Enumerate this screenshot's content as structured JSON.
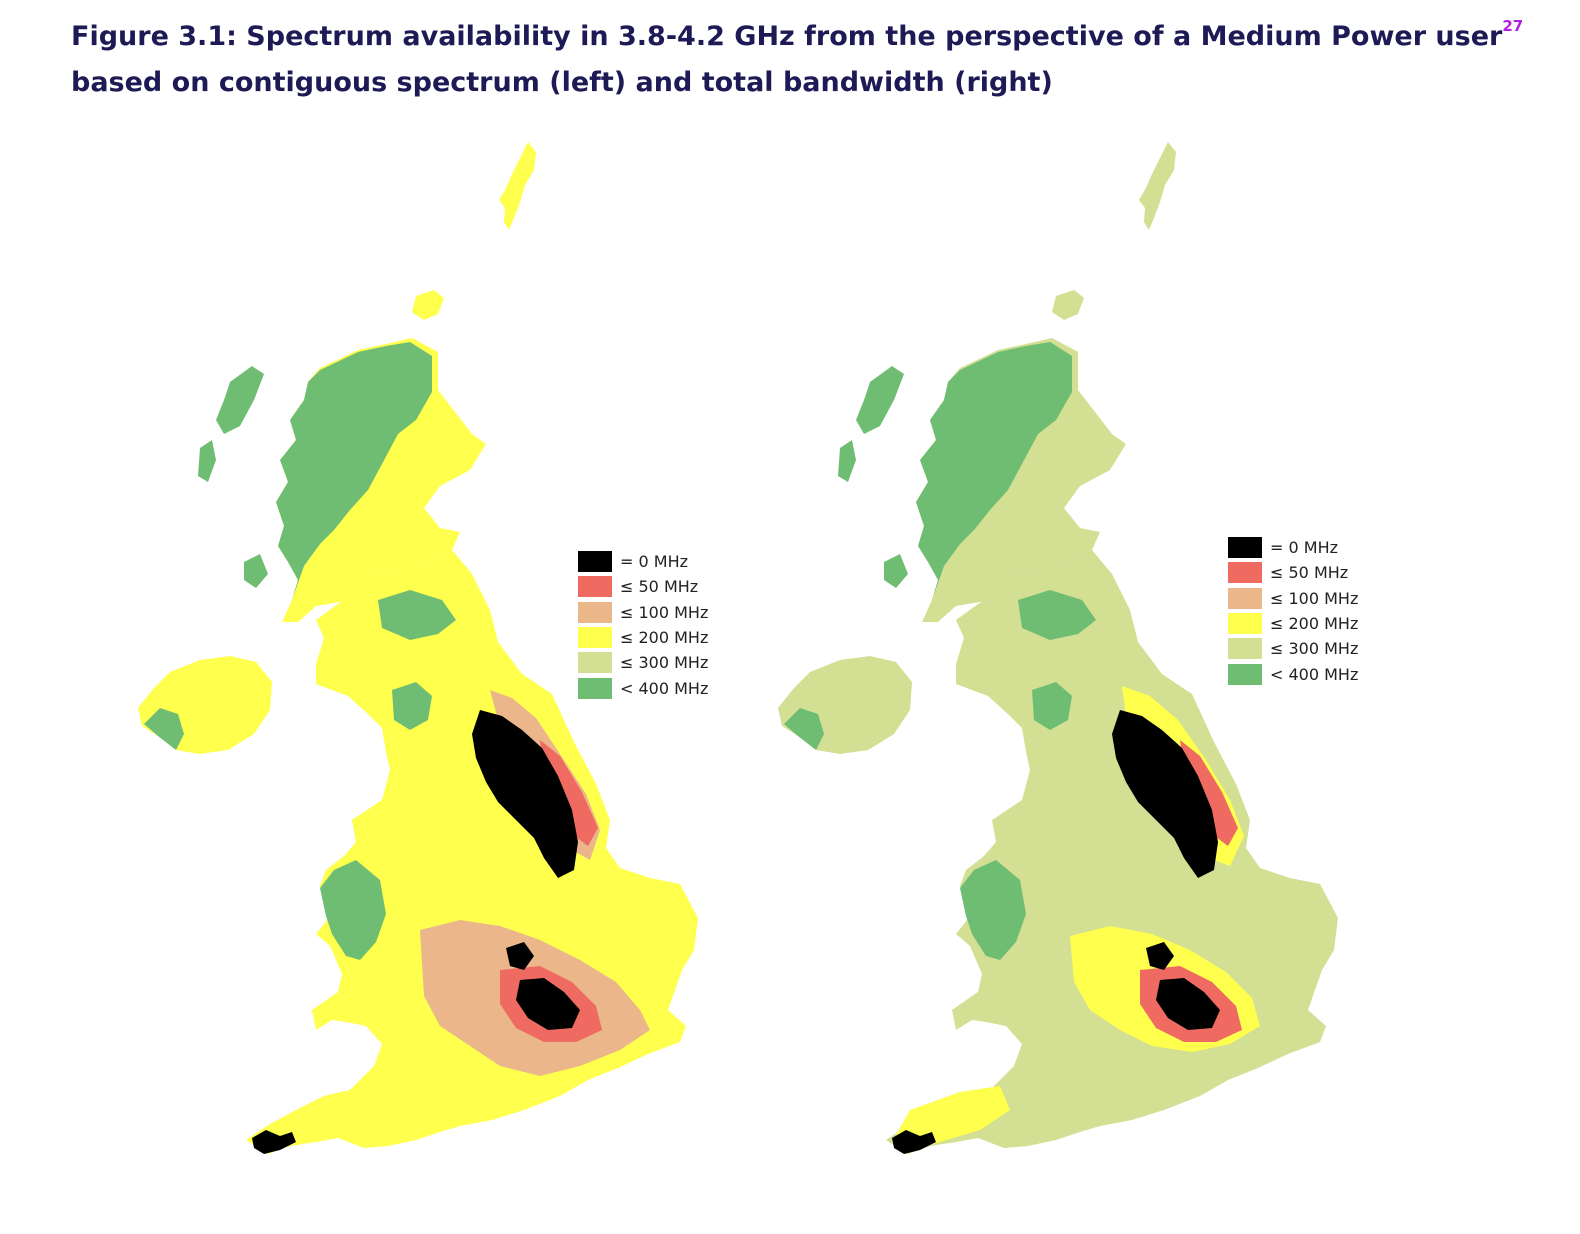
{
  "figure": {
    "title": "Figure 3.1: Spectrum availability in 3.8-4.2 GHz from the perspective of a Medium Power user",
    "footnote_ref": "27",
    "subtitle": "based on contiguous spectrum (left) and total bandwidth (right)"
  },
  "legend": {
    "items": [
      {
        "label": "= 0 MHz",
        "color": "#000000"
      },
      {
        "label": "≤ 50 MHz",
        "color": "#ef6a60"
      },
      {
        "label": "≤ 100 MHz",
        "color": "#eab68a"
      },
      {
        "label": "≤ 200 MHz",
        "color": "#ffff4d"
      },
      {
        "label": "≤ 300 MHz",
        "color": "#d3df92"
      },
      {
        "label": "< 400 MHz",
        "color": "#6ebd72"
      }
    ]
  },
  "maps": {
    "left": {
      "basis": "contiguous spectrum",
      "base_color": "#ffff4d",
      "highland_color": "#6ebd72"
    },
    "right": {
      "basis": "total bandwidth",
      "base_color": "#d3df92",
      "highland_color": "#6ebd72"
    }
  }
}
